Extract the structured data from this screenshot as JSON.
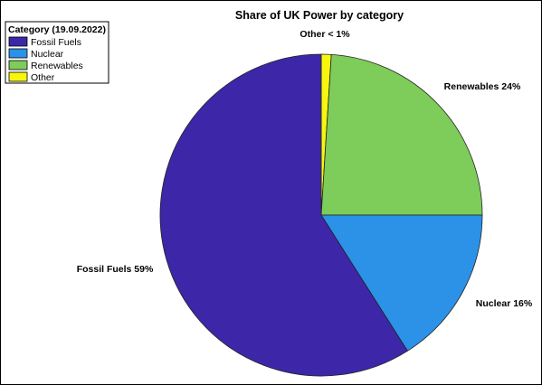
{
  "chart_data": {
    "type": "pie",
    "title": "Share of UK Power by category",
    "legend": {
      "title": "Category (19.09.2022)",
      "placement": "top-left"
    },
    "slices": [
      {
        "name": "Fossil Fuels",
        "value": 59,
        "label": "Fossil Fuels 59%",
        "color": "#3d27a8"
      },
      {
        "name": "Nuclear",
        "value": 16,
        "label": "Nuclear 16%",
        "color": "#2b92e8"
      },
      {
        "name": "Renewables",
        "value": 24,
        "label": "Renewables 24%",
        "color": "#7ecc59"
      },
      {
        "name": "Other",
        "value": 1,
        "label": "Other < 1%",
        "color": "#f6f60e"
      }
    ],
    "start_angle_deg": 0,
    "direction": "clockwise"
  }
}
